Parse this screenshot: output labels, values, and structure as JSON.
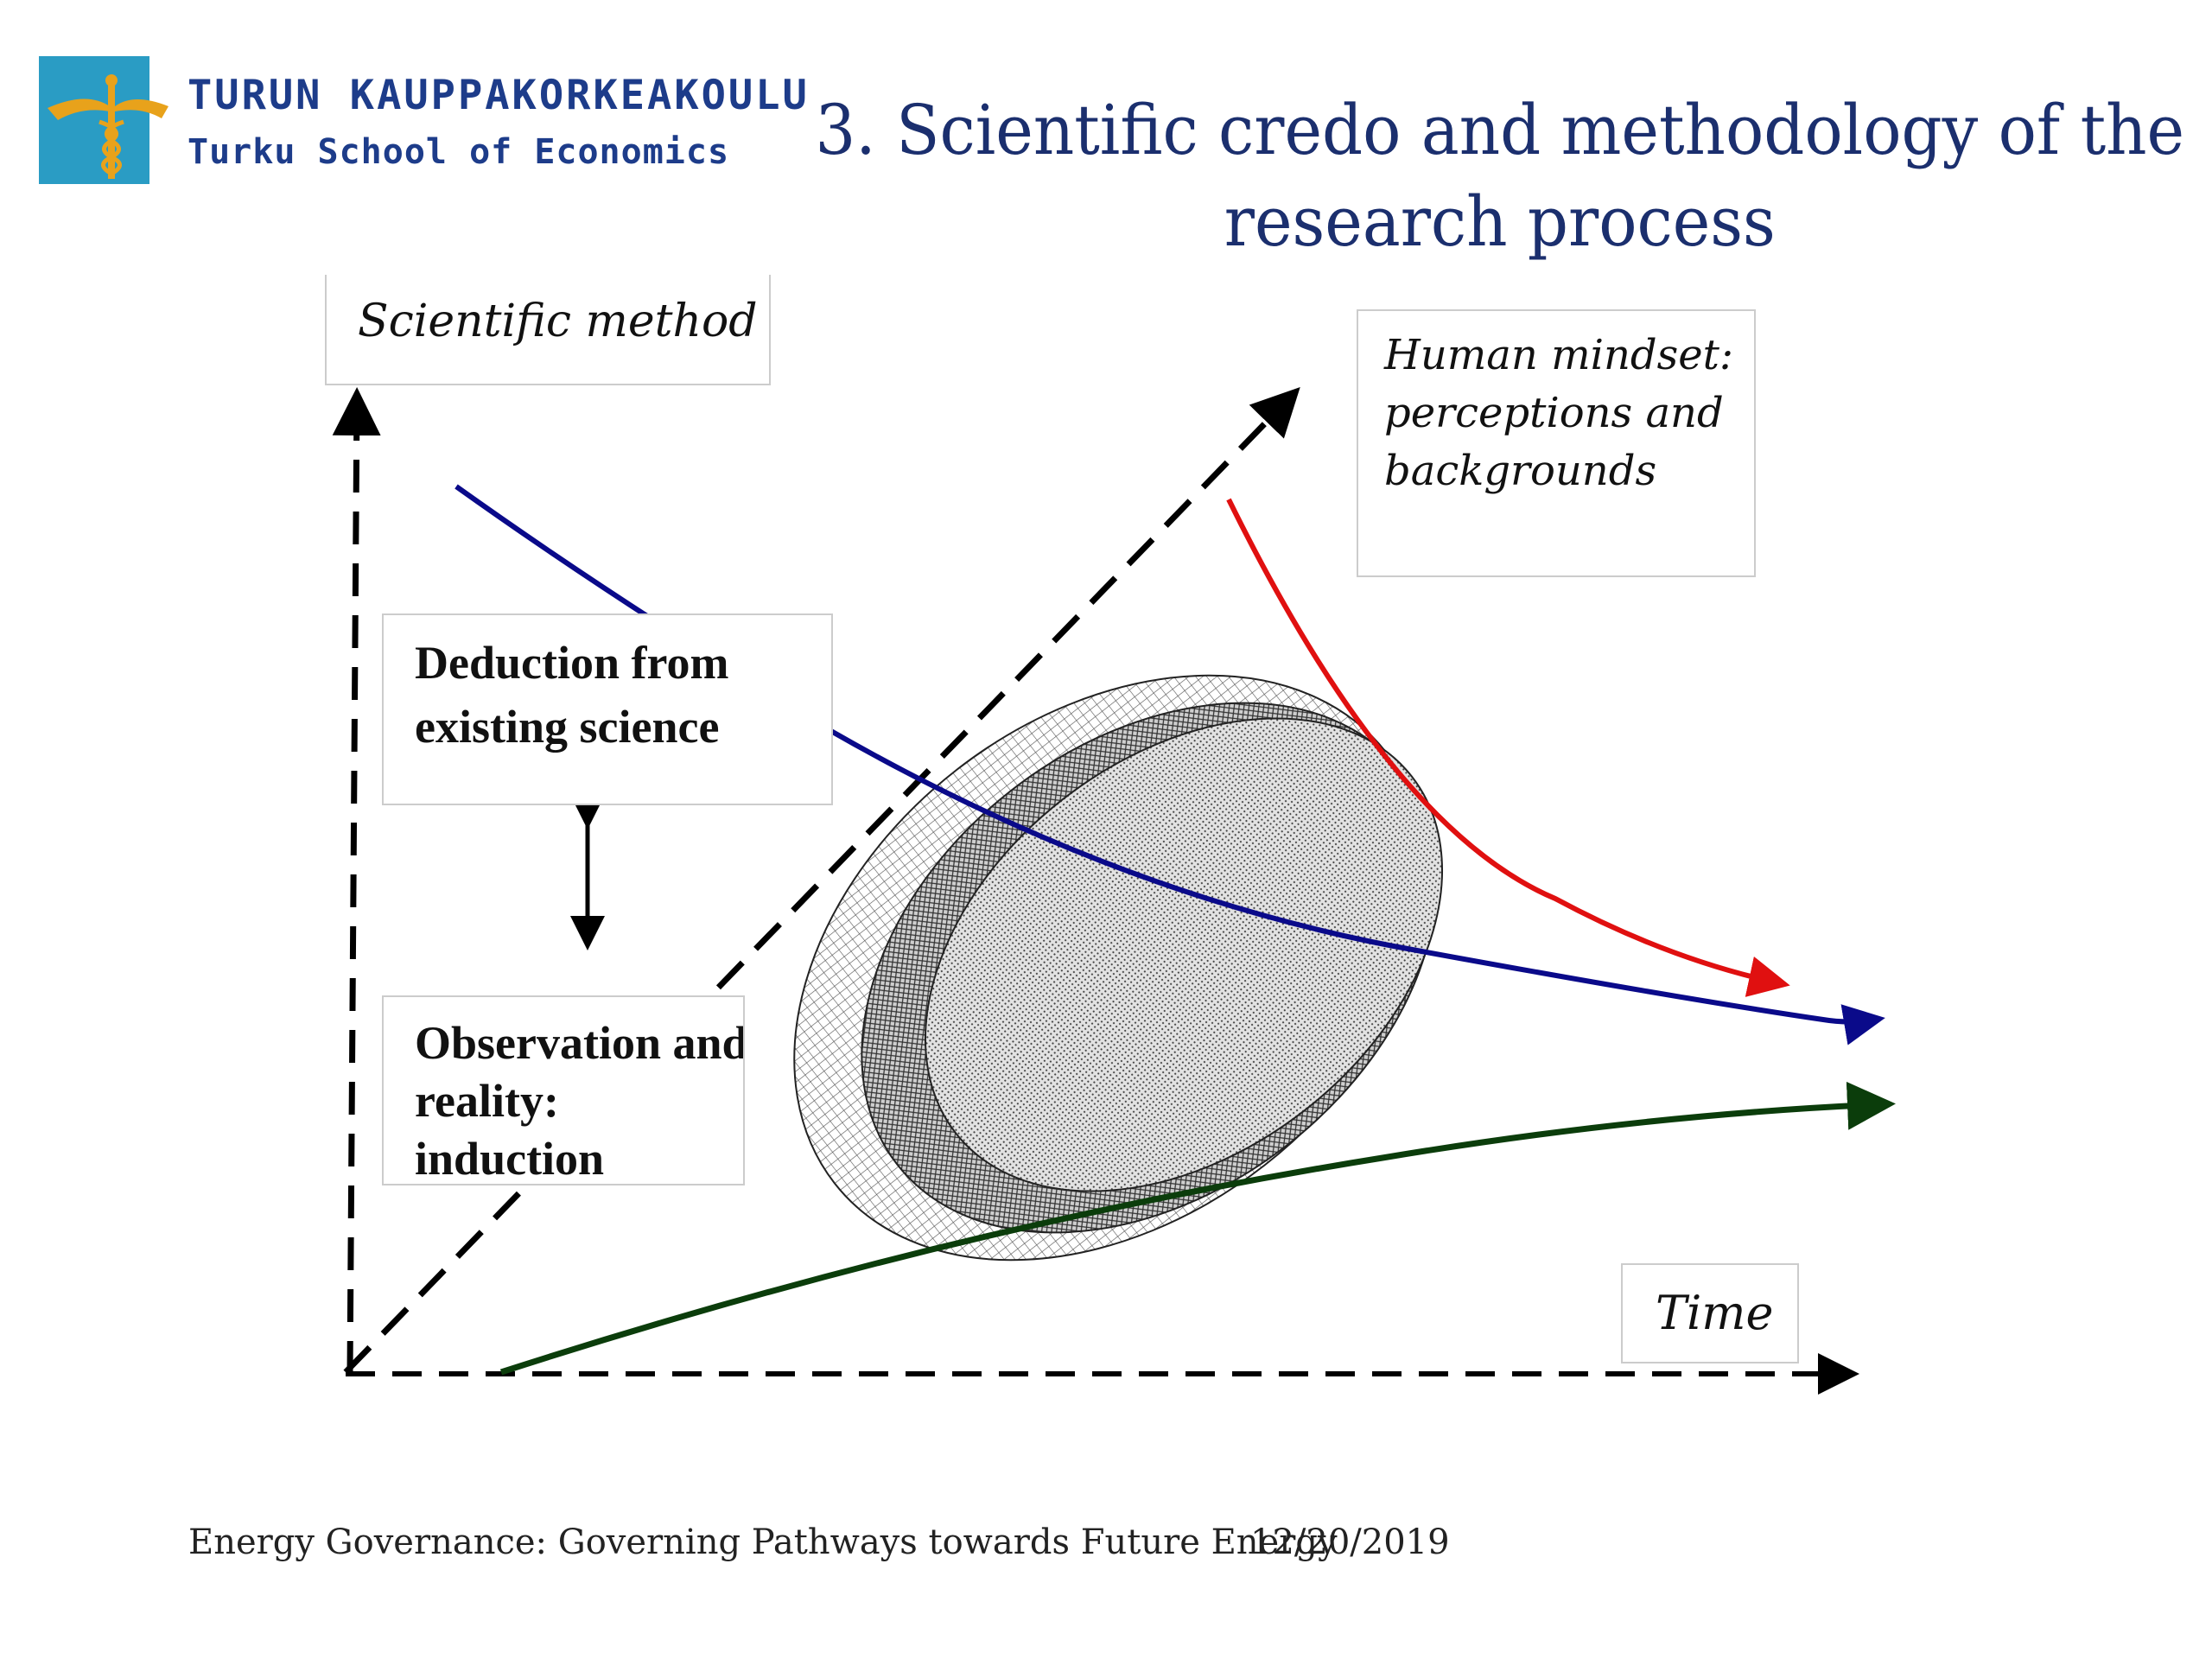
{
  "logo": {
    "line1": "TURUN KAUPPAKORKEAKOULU",
    "line2": "Turku School of Economics",
    "colors": {
      "square": "#2a9cc4",
      "emblem": "#e8a21b",
      "text": "#1d3c8a"
    }
  },
  "title": {
    "text": "3. Scientific credo and methodology of the research process",
    "color": "#1b2f6e"
  },
  "diagram": {
    "labels": {
      "scientific_method": "Scientific method",
      "human_mindset": "Human mindset: perceptions and backgrounds",
      "deduction": "Deduction from existing science",
      "observation": "Observation and reality: induction",
      "time": "Time"
    },
    "curve_colors": {
      "deduction_curve": "#0a0a8a",
      "mindset_curve": "#e01010",
      "induction_curve": "#0b3d0b",
      "axes": "#000000"
    }
  },
  "footer": {
    "text": "Energy Governance: Governing Pathways towards Future Energy",
    "date": "12/20/2019"
  }
}
